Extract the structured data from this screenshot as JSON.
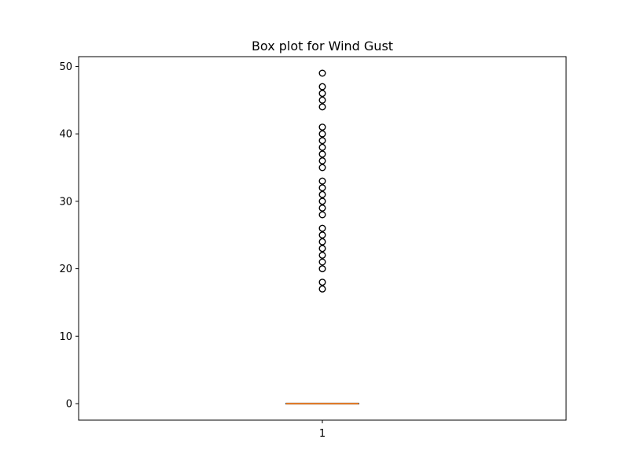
{
  "chart_data": {
    "type": "box",
    "title": "Box plot for Wind Gust",
    "xlabel": "",
    "ylabel": "",
    "categories": [
      "1"
    ],
    "ylim": [
      -2.45,
      51.45
    ],
    "yticks": [
      0,
      10,
      20,
      30,
      40,
      50
    ],
    "grid": false,
    "box": {
      "q1": 0,
      "median": 0,
      "q3": 0,
      "whisker_low": 0,
      "whisker_high": 0
    },
    "outliers": [
      17,
      18,
      20,
      21,
      22,
      23,
      24,
      25,
      26,
      28,
      29,
      30,
      31,
      32,
      33,
      35,
      36,
      37,
      38,
      39,
      40,
      41,
      44,
      45,
      46,
      47,
      49
    ],
    "colors": {
      "median": "#e07b2a",
      "box": "#000000",
      "outlier_edge": "#000000"
    }
  }
}
